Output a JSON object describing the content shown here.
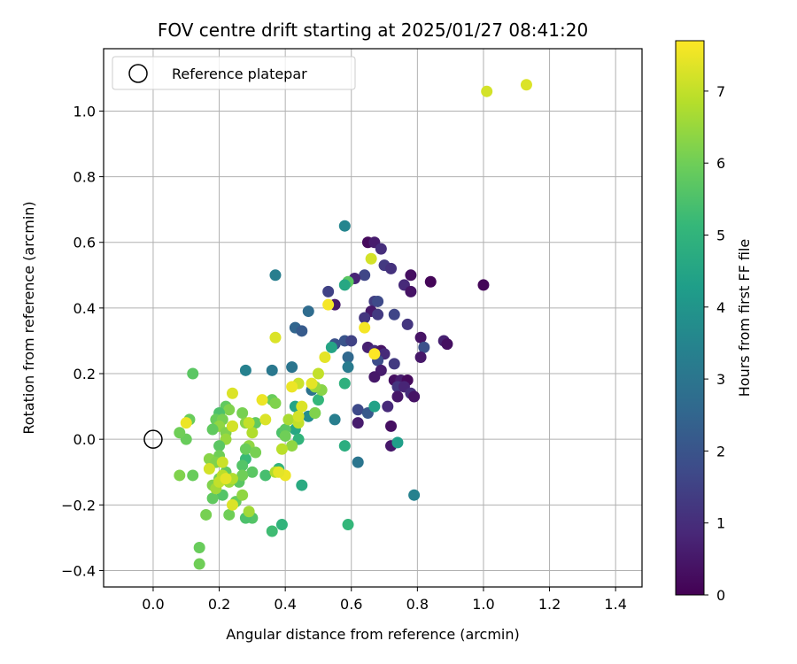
{
  "chart_data": {
    "type": "scatter",
    "title": "FOV centre drift starting at 2025/01/27 08:41:20",
    "xlabel": "Angular distance from reference (arcmin)",
    "ylabel": "Rotation from reference (arcmin)",
    "xlim": [
      -0.15,
      1.48
    ],
    "ylim": [
      -0.45,
      1.19
    ],
    "xticks": [
      0.0,
      0.2,
      0.4,
      0.6,
      0.8,
      1.0,
      1.2,
      1.4
    ],
    "xtick_labels": [
      "0.0",
      "0.2",
      "0.4",
      "0.6",
      "0.8",
      "1.0",
      "1.2",
      "1.4"
    ],
    "yticks": [
      -0.4,
      -0.2,
      0.0,
      0.2,
      0.4,
      0.6,
      0.8,
      1.0
    ],
    "ytick_labels": [
      "−0.4",
      "−0.2",
      "0.0",
      "0.2",
      "0.4",
      "0.6",
      "0.8",
      "1.0"
    ],
    "grid": true,
    "legend": {
      "position": "top-left",
      "entries": [
        "Reference platepar"
      ]
    },
    "reference_point": {
      "x": 0.0,
      "y": 0.0
    },
    "colorbar": {
      "label": "Hours from first FF file",
      "colormap": "viridis",
      "min": 0,
      "max": 7.7,
      "ticks": [
        0,
        1,
        2,
        3,
        4,
        5,
        6,
        7
      ],
      "tick_labels": [
        "0",
        "1",
        "2",
        "3",
        "4",
        "5",
        "6",
        "7"
      ]
    },
    "viridis_stops": [
      "#440154",
      "#482878",
      "#3e4a89",
      "#31688e",
      "#26828e",
      "#1f9e89",
      "#35b779",
      "#6ece58",
      "#b5de2b",
      "#fde725"
    ],
    "points": [
      {
        "x": 0.65,
        "y": 0.6,
        "c": 0.2
      },
      {
        "x": 0.67,
        "y": 0.6,
        "c": 0.6
      },
      {
        "x": 0.69,
        "y": 0.58,
        "c": 1.0
      },
      {
        "x": 0.7,
        "y": 0.53,
        "c": 1.3
      },
      {
        "x": 0.72,
        "y": 0.52,
        "c": 1.1
      },
      {
        "x": 0.78,
        "y": 0.5,
        "c": 0.3
      },
      {
        "x": 0.84,
        "y": 0.48,
        "c": 0.1
      },
      {
        "x": 0.76,
        "y": 0.47,
        "c": 0.9
      },
      {
        "x": 0.78,
        "y": 0.45,
        "c": 0.4
      },
      {
        "x": 1.0,
        "y": 0.47,
        "c": 0.1
      },
      {
        "x": 0.64,
        "y": 0.5,
        "c": 1.6
      },
      {
        "x": 0.61,
        "y": 0.49,
        "c": 0.8
      },
      {
        "x": 0.53,
        "y": 0.45,
        "c": 1.5
      },
      {
        "x": 0.55,
        "y": 0.41,
        "c": 0.5
      },
      {
        "x": 0.67,
        "y": 0.42,
        "c": 1.4
      },
      {
        "x": 0.68,
        "y": 0.42,
        "c": 1.7
      },
      {
        "x": 0.66,
        "y": 0.39,
        "c": 0.5
      },
      {
        "x": 0.64,
        "y": 0.37,
        "c": 1.2
      },
      {
        "x": 0.68,
        "y": 0.38,
        "c": 1.3
      },
      {
        "x": 0.73,
        "y": 0.38,
        "c": 1.6
      },
      {
        "x": 0.77,
        "y": 0.35,
        "c": 1.2
      },
      {
        "x": 0.81,
        "y": 0.31,
        "c": 0.4
      },
      {
        "x": 0.82,
        "y": 0.28,
        "c": 1.9
      },
      {
        "x": 0.88,
        "y": 0.3,
        "c": 0.7
      },
      {
        "x": 0.89,
        "y": 0.29,
        "c": 0.3
      },
      {
        "x": 0.81,
        "y": 0.25,
        "c": 0.5
      },
      {
        "x": 0.65,
        "y": 0.28,
        "c": 0.7
      },
      {
        "x": 0.67,
        "y": 0.27,
        "c": 1.0
      },
      {
        "x": 0.69,
        "y": 0.27,
        "c": 0.4
      },
      {
        "x": 0.7,
        "y": 0.26,
        "c": 0.9
      },
      {
        "x": 0.68,
        "y": 0.24,
        "c": 1.8
      },
      {
        "x": 0.73,
        "y": 0.23,
        "c": 1.3
      },
      {
        "x": 0.69,
        "y": 0.21,
        "c": 0.6
      },
      {
        "x": 0.67,
        "y": 0.19,
        "c": 0.5
      },
      {
        "x": 0.73,
        "y": 0.18,
        "c": 0.3
      },
      {
        "x": 0.75,
        "y": 0.18,
        "c": 0.6
      },
      {
        "x": 0.77,
        "y": 0.18,
        "c": 0.2
      },
      {
        "x": 0.74,
        "y": 0.16,
        "c": 1.2
      },
      {
        "x": 0.76,
        "y": 0.16,
        "c": 0.8
      },
      {
        "x": 0.78,
        "y": 0.14,
        "c": 1.0
      },
      {
        "x": 0.74,
        "y": 0.13,
        "c": 0.5
      },
      {
        "x": 0.79,
        "y": 0.13,
        "c": 0.4
      },
      {
        "x": 0.71,
        "y": 0.1,
        "c": 0.9
      },
      {
        "x": 0.62,
        "y": 0.09,
        "c": 1.7
      },
      {
        "x": 0.65,
        "y": 0.08,
        "c": 2.1
      },
      {
        "x": 0.62,
        "y": 0.05,
        "c": 0.6
      },
      {
        "x": 0.72,
        "y": 0.04,
        "c": 0.3
      },
      {
        "x": 0.72,
        "y": -0.02,
        "c": 0.5
      },
      {
        "x": 0.55,
        "y": 0.29,
        "c": 1.9
      },
      {
        "x": 0.58,
        "y": 0.3,
        "c": 2.0
      },
      {
        "x": 0.6,
        "y": 0.3,
        "c": 1.5
      },
      {
        "x": 0.59,
        "y": 0.25,
        "c": 2.6
      },
      {
        "x": 0.59,
        "y": 0.22,
        "c": 3.2
      },
      {
        "x": 0.58,
        "y": 0.65,
        "c": 3.5
      },
      {
        "x": 0.37,
        "y": 0.5,
        "c": 3.3
      },
      {
        "x": 0.47,
        "y": 0.39,
        "c": 2.7
      },
      {
        "x": 0.43,
        "y": 0.34,
        "c": 2.5
      },
      {
        "x": 0.45,
        "y": 0.33,
        "c": 2.2
      },
      {
        "x": 0.42,
        "y": 0.22,
        "c": 3.0
      },
      {
        "x": 0.36,
        "y": 0.21,
        "c": 3.1
      },
      {
        "x": 0.28,
        "y": 0.21,
        "c": 3.4
      },
      {
        "x": 0.48,
        "y": 0.15,
        "c": 2.9
      },
      {
        "x": 0.55,
        "y": 0.06,
        "c": 3.3
      },
      {
        "x": 0.47,
        "y": 0.07,
        "c": 3.8
      },
      {
        "x": 0.62,
        "y": -0.07,
        "c": 3.0
      },
      {
        "x": 0.79,
        "y": -0.17,
        "c": 3.4
      },
      {
        "x": 0.67,
        "y": 0.1,
        "c": 4.4
      },
      {
        "x": 0.74,
        "y": -0.01,
        "c": 4.3
      },
      {
        "x": 0.58,
        "y": 0.17,
        "c": 4.9
      },
      {
        "x": 0.54,
        "y": 0.28,
        "c": 4.5
      },
      {
        "x": 0.59,
        "y": 0.48,
        "c": 5.7
      },
      {
        "x": 0.58,
        "y": 0.47,
        "c": 4.6
      },
      {
        "x": 0.58,
        "y": -0.02,
        "c": 4.8
      },
      {
        "x": 0.59,
        "y": -0.26,
        "c": 5.1
      },
      {
        "x": 0.49,
        "y": 0.16,
        "c": 4.7
      },
      {
        "x": 0.5,
        "y": 0.12,
        "c": 5.1
      },
      {
        "x": 0.49,
        "y": 0.08,
        "c": 5.3
      },
      {
        "x": 0.43,
        "y": 0.1,
        "c": 4.5
      },
      {
        "x": 0.43,
        "y": 0.03,
        "c": 4.6
      },
      {
        "x": 0.45,
        "y": -0.14,
        "c": 4.7
      },
      {
        "x": 0.39,
        "y": 0.02,
        "c": 5.5
      },
      {
        "x": 0.44,
        "y": 0.0,
        "c": 5.0
      },
      {
        "x": 0.38,
        "y": -0.09,
        "c": 5.0
      },
      {
        "x": 0.39,
        "y": -0.26,
        "c": 5.0
      },
      {
        "x": 0.36,
        "y": -0.28,
        "c": 5.3
      },
      {
        "x": 0.3,
        "y": -0.24,
        "c": 5.6
      },
      {
        "x": 0.28,
        "y": -0.24,
        "c": 5.5
      },
      {
        "x": 0.36,
        "y": 0.12,
        "c": 5.9
      },
      {
        "x": 0.31,
        "y": 0.05,
        "c": 5.8
      },
      {
        "x": 0.34,
        "y": -0.11,
        "c": 5.4
      },
      {
        "x": 0.28,
        "y": -0.06,
        "c": 5.2
      },
      {
        "x": 0.27,
        "y": -0.08,
        "c": 5.6
      },
      {
        "x": 0.26,
        "y": -0.13,
        "c": 5.7
      },
      {
        "x": 0.25,
        "y": -0.19,
        "c": 5.9
      },
      {
        "x": 0.23,
        "y": -0.23,
        "c": 6.0
      },
      {
        "x": 0.21,
        "y": -0.17,
        "c": 5.6
      },
      {
        "x": 0.18,
        "y": -0.18,
        "c": 5.8
      },
      {
        "x": 0.16,
        "y": -0.23,
        "c": 6.1
      },
      {
        "x": 0.14,
        "y": -0.33,
        "c": 5.9
      },
      {
        "x": 0.14,
        "y": -0.38,
        "c": 6.0
      },
      {
        "x": 0.22,
        "y": 0.1,
        "c": 5.8
      },
      {
        "x": 0.23,
        "y": 0.09,
        "c": 6.2
      },
      {
        "x": 0.2,
        "y": 0.08,
        "c": 5.5
      },
      {
        "x": 0.19,
        "y": 0.06,
        "c": 5.9
      },
      {
        "x": 0.21,
        "y": 0.06,
        "c": 6.1
      },
      {
        "x": 0.2,
        "y": 0.04,
        "c": 6.4
      },
      {
        "x": 0.22,
        "y": 0.02,
        "c": 6.2
      },
      {
        "x": 0.18,
        "y": 0.03,
        "c": 5.8
      },
      {
        "x": 0.24,
        "y": 0.04,
        "c": 6.6
      },
      {
        "x": 0.22,
        "y": 0.0,
        "c": 6.5
      },
      {
        "x": 0.2,
        "y": -0.02,
        "c": 5.7
      },
      {
        "x": 0.2,
        "y": -0.05,
        "c": 6.0
      },
      {
        "x": 0.17,
        "y": -0.06,
        "c": 6.3
      },
      {
        "x": 0.19,
        "y": -0.07,
        "c": 6.2
      },
      {
        "x": 0.22,
        "y": -0.1,
        "c": 5.8
      },
      {
        "x": 0.2,
        "y": -0.12,
        "c": 6.1
      },
      {
        "x": 0.23,
        "y": -0.13,
        "c": 6.5
      },
      {
        "x": 0.18,
        "y": -0.14,
        "c": 6.2
      },
      {
        "x": 0.19,
        "y": -0.15,
        "c": 6.6
      },
      {
        "x": 0.21,
        "y": -0.11,
        "c": 6.9
      },
      {
        "x": 0.1,
        "y": 0.0,
        "c": 5.9
      },
      {
        "x": 0.08,
        "y": 0.02,
        "c": 6.0
      },
      {
        "x": 0.11,
        "y": 0.06,
        "c": 5.9
      },
      {
        "x": 0.12,
        "y": 0.2,
        "c": 5.7
      },
      {
        "x": 0.12,
        "y": -0.11,
        "c": 5.9
      },
      {
        "x": 0.08,
        "y": -0.11,
        "c": 6.2
      },
      {
        "x": 0.27,
        "y": 0.08,
        "c": 6.1
      },
      {
        "x": 0.28,
        "y": 0.05,
        "c": 6.3
      },
      {
        "x": 0.3,
        "y": 0.02,
        "c": 6.8
      },
      {
        "x": 0.29,
        "y": -0.02,
        "c": 6.4
      },
      {
        "x": 0.28,
        "y": -0.03,
        "c": 5.9
      },
      {
        "x": 0.31,
        "y": -0.04,
        "c": 6.1
      },
      {
        "x": 0.3,
        "y": -0.1,
        "c": 5.7
      },
      {
        "x": 0.27,
        "y": -0.11,
        "c": 6.0
      },
      {
        "x": 0.27,
        "y": -0.17,
        "c": 6.4
      },
      {
        "x": 0.29,
        "y": -0.22,
        "c": 6.6
      },
      {
        "x": 0.24,
        "y": -0.12,
        "c": 6.8
      },
      {
        "x": 0.4,
        "y": 0.03,
        "c": 5.7
      },
      {
        "x": 0.4,
        "y": 0.01,
        "c": 6.0
      },
      {
        "x": 0.42,
        "y": -0.02,
        "c": 6.4
      },
      {
        "x": 0.37,
        "y": 0.11,
        "c": 6.2
      },
      {
        "x": 0.41,
        "y": 0.06,
        "c": 6.7
      },
      {
        "x": 0.37,
        "y": -0.1,
        "c": 6.8
      },
      {
        "x": 0.39,
        "y": -0.03,
        "c": 6.9
      },
      {
        "x": 0.49,
        "y": 0.08,
        "c": 6.2
      },
      {
        "x": 0.51,
        "y": 0.15,
        "c": 6.3
      },
      {
        "x": 0.49,
        "y": 0.16,
        "c": 6.5
      },
      {
        "x": 0.44,
        "y": 0.05,
        "c": 7.0
      },
      {
        "x": 0.44,
        "y": 0.07,
        "c": 7.2
      },
      {
        "x": 0.44,
        "y": 0.17,
        "c": 7.1
      },
      {
        "x": 0.45,
        "y": 0.1,
        "c": 7.3
      },
      {
        "x": 0.42,
        "y": 0.16,
        "c": 7.5
      },
      {
        "x": 0.48,
        "y": 0.17,
        "c": 7.4
      },
      {
        "x": 0.5,
        "y": 0.2,
        "c": 7.0
      },
      {
        "x": 0.52,
        "y": 0.25,
        "c": 7.4
      },
      {
        "x": 0.53,
        "y": 0.41,
        "c": 7.6
      },
      {
        "x": 0.37,
        "y": 0.31,
        "c": 7.3
      },
      {
        "x": 0.34,
        "y": 0.06,
        "c": 7.3
      },
      {
        "x": 0.33,
        "y": 0.12,
        "c": 7.5
      },
      {
        "x": 0.4,
        "y": -0.11,
        "c": 7.5
      },
      {
        "x": 0.38,
        "y": -0.1,
        "c": 7.4
      },
      {
        "x": 0.24,
        "y": 0.14,
        "c": 7.3
      },
      {
        "x": 0.24,
        "y": 0.04,
        "c": 7.2
      },
      {
        "x": 0.29,
        "y": 0.05,
        "c": 7.0
      },
      {
        "x": 0.21,
        "y": -0.07,
        "c": 7.1
      },
      {
        "x": 0.2,
        "y": -0.13,
        "c": 7.0
      },
      {
        "x": 0.24,
        "y": -0.2,
        "c": 7.3
      },
      {
        "x": 0.22,
        "y": -0.12,
        "c": 7.4
      },
      {
        "x": 0.17,
        "y": -0.09,
        "c": 7.2
      },
      {
        "x": 0.1,
        "y": 0.05,
        "c": 7.5
      },
      {
        "x": 0.64,
        "y": 0.34,
        "c": 7.6
      },
      {
        "x": 0.67,
        "y": 0.26,
        "c": 7.7
      },
      {
        "x": 0.66,
        "y": 0.55,
        "c": 7.2
      },
      {
        "x": 1.01,
        "y": 1.06,
        "c": 7.2
      },
      {
        "x": 1.13,
        "y": 1.08,
        "c": 7.3
      }
    ]
  }
}
